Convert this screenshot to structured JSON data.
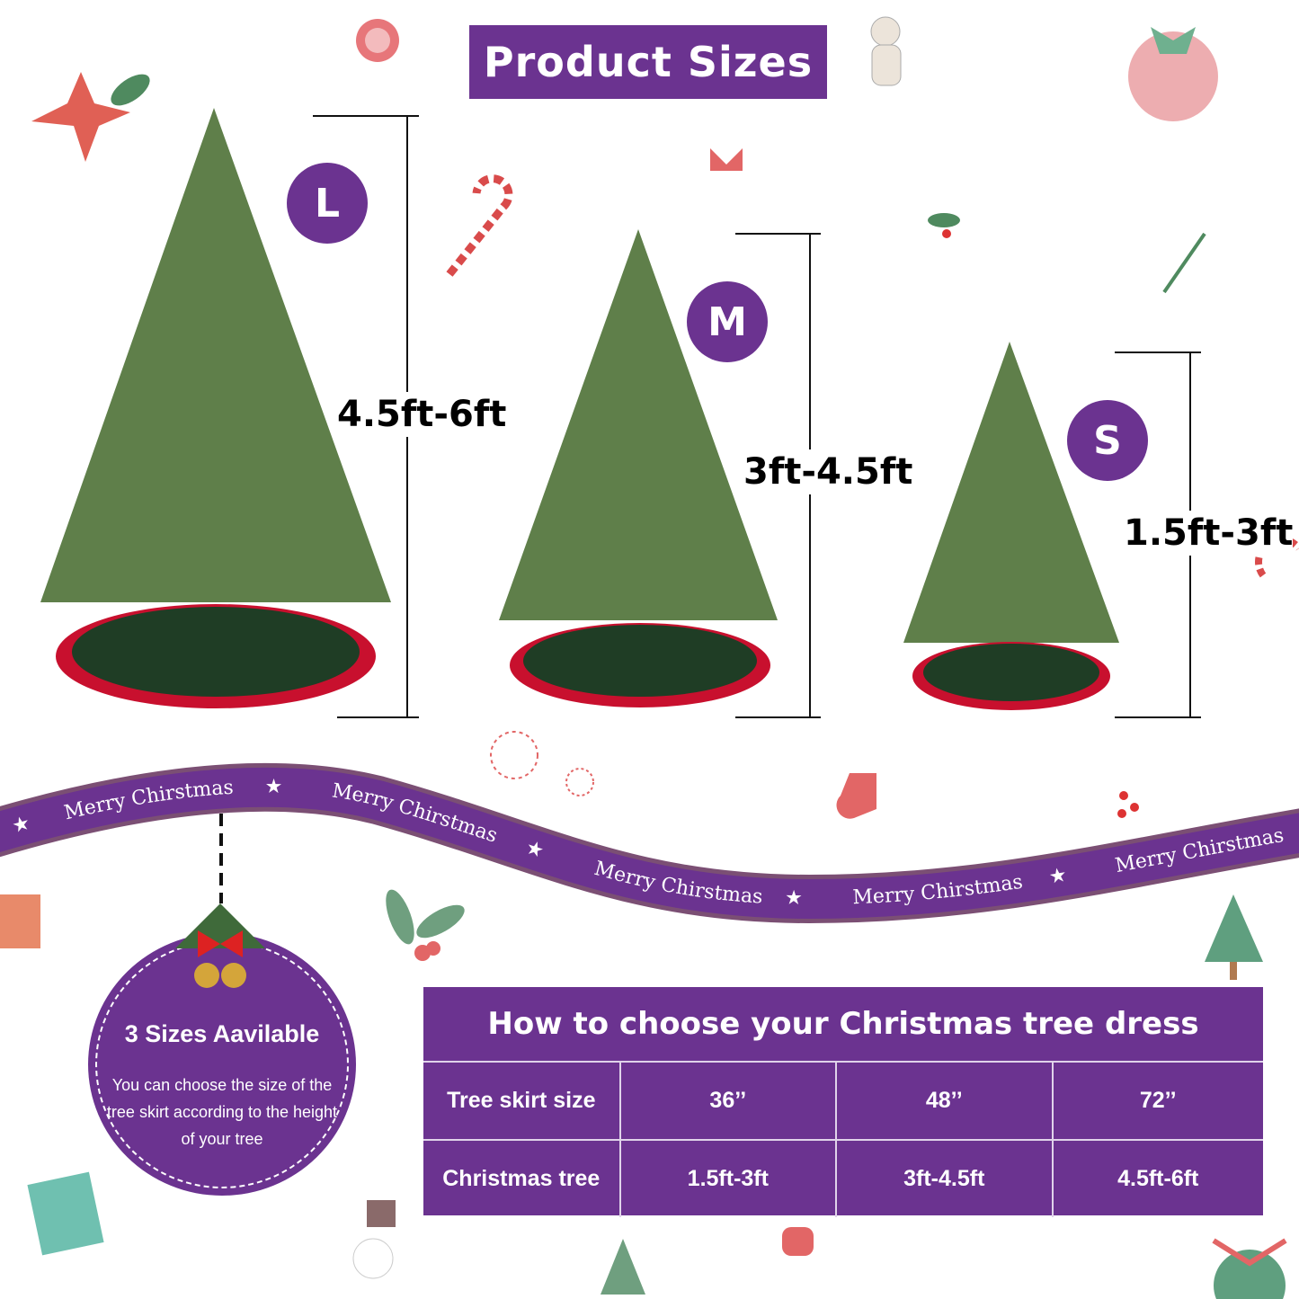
{
  "header": {
    "title": "Product Sizes"
  },
  "sizes": [
    {
      "badge": "L",
      "height_range": "4.5ft-6ft"
    },
    {
      "badge": "M",
      "height_range": "3ft-4.5ft"
    },
    {
      "badge": "S",
      "height_range": "1.5ft-3ft"
    }
  ],
  "ribbon": {
    "texts": [
      "Merry Chirstmas",
      "Merry Chirstmas",
      "Merry Chirstmas",
      "Merry Chirstmas",
      "Merry Chirstmas"
    ]
  },
  "info_circle": {
    "title": "3 Sizes Aavilable",
    "body": "You can choose the size of the tree skirt according to the height of your tree"
  },
  "size_table": {
    "title": "How to choose your Christmas tree dress",
    "rows": [
      {
        "label": "Tree skirt size",
        "values": [
          "36’’",
          "48’’",
          "72’’"
        ]
      },
      {
        "label": "Christmas tree",
        "values": [
          "1.5ft-3ft",
          "3ft-4.5ft",
          "4.5ft-6ft"
        ]
      }
    ]
  },
  "colors": {
    "brand_purple": "#6b3390",
    "skirt_green": "#1f3d25",
    "skirt_red": "#c8102e",
    "tree_green": "#5f7f4a"
  }
}
